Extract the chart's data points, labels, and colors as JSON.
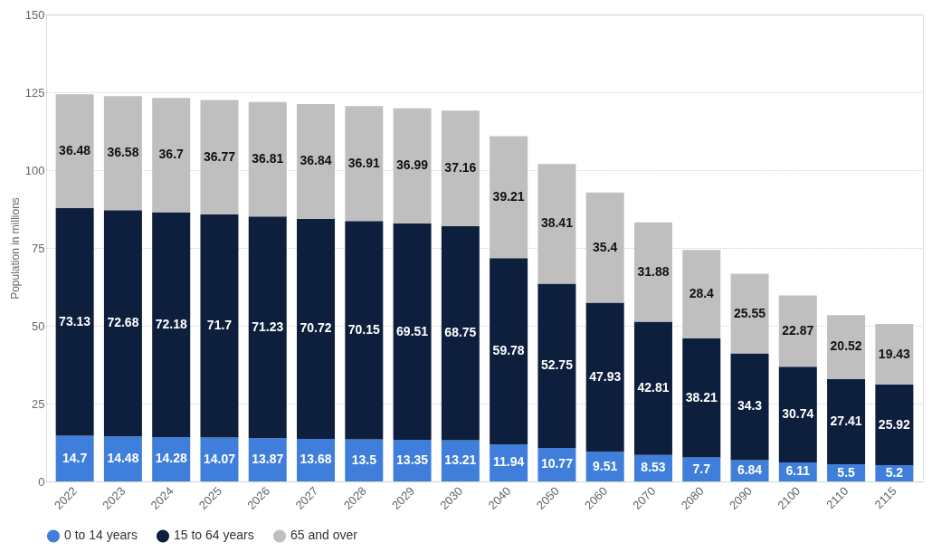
{
  "chart_data": {
    "type": "bar",
    "stacked": true,
    "ylabel": "Population in millions",
    "categories": [
      "2022",
      "2023",
      "2024",
      "2025",
      "2026",
      "2027",
      "2028",
      "2029",
      "2030",
      "2040",
      "2050",
      "2060",
      "2070",
      "2080",
      "2090",
      "2100",
      "2110",
      "2115"
    ],
    "series": [
      {
        "name": "0 to 14 years",
        "color": "#3f7fdb",
        "values": [
          14.7,
          14.48,
          14.28,
          14.07,
          13.87,
          13.68,
          13.5,
          13.35,
          13.21,
          11.94,
          10.77,
          9.51,
          8.53,
          7.7,
          6.84,
          6.11,
          5.5,
          5.2
        ]
      },
      {
        "name": "15 to 64 years",
        "color": "#0d1f3c",
        "values": [
          73.13,
          72.68,
          72.18,
          71.7,
          71.23,
          70.72,
          70.15,
          69.51,
          68.75,
          59.78,
          52.75,
          47.93,
          42.81,
          38.21,
          34.3,
          30.74,
          27.41,
          25.92
        ]
      },
      {
        "name": "65 and over",
        "color": "#bfbfbf",
        "values": [
          36.48,
          36.58,
          36.7,
          36.77,
          36.81,
          36.84,
          36.91,
          36.99,
          37.16,
          39.21,
          38.41,
          35.4,
          31.88,
          28.4,
          25.55,
          22.87,
          20.52,
          19.43
        ]
      }
    ],
    "ylim": [
      0,
      150
    ],
    "yticks": [
      0,
      25,
      50,
      75,
      100,
      125,
      150
    ],
    "grid": "y",
    "legend": "bottom",
    "data_labels": true
  }
}
